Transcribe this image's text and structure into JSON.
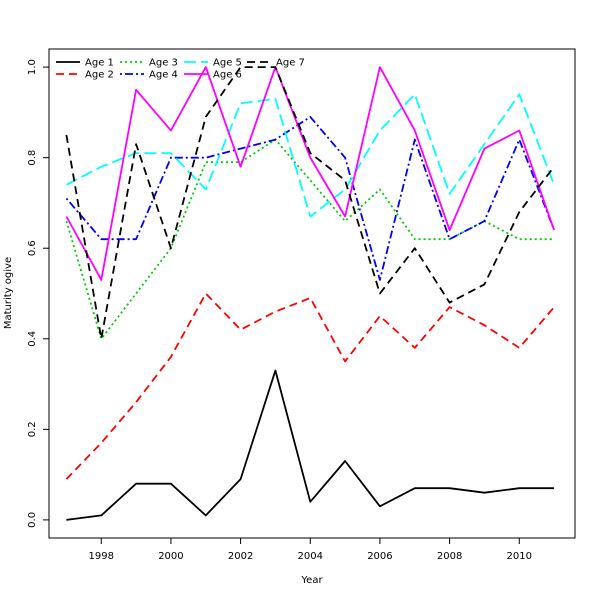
{
  "chart_data": {
    "type": "line",
    "title": "",
    "xlabel": "Year",
    "ylabel": "Maturity ogive",
    "xlim": [
      1996.5,
      2011.6
    ],
    "ylim": [
      -0.04,
      1.04
    ],
    "xticks": [
      1998,
      2000,
      2002,
      2004,
      2006,
      2008,
      2010
    ],
    "yticks": [
      0.0,
      0.2,
      0.4,
      0.6,
      0.8,
      1.0
    ],
    "x": [
      1997,
      1998,
      1999,
      2000,
      2001,
      2002,
      2003,
      2004,
      2005,
      2006,
      2007,
      2008,
      2009,
      2010,
      2011
    ],
    "legend_position": "top-left",
    "grid": false,
    "series": [
      {
        "name": "Age 1",
        "color": "#000000",
        "dash": "solid",
        "values": [
          0.0,
          0.01,
          0.08,
          0.08,
          0.01,
          0.09,
          0.33,
          0.04,
          0.13,
          0.03,
          0.07,
          0.07,
          0.06,
          0.07,
          0.07
        ]
      },
      {
        "name": "Age 2",
        "color": "#ff0000",
        "dash": "dashed",
        "values": [
          0.09,
          0.17,
          0.26,
          0.36,
          0.5,
          0.42,
          0.46,
          0.49,
          0.35,
          0.45,
          0.38,
          0.47,
          0.43,
          0.38,
          0.47
        ]
      },
      {
        "name": "Age 3",
        "color": "#00cd00",
        "dash": "dotted",
        "values": [
          0.66,
          0.4,
          0.5,
          0.6,
          0.79,
          0.79,
          0.84,
          0.75,
          0.66,
          0.73,
          0.62,
          0.62,
          0.66,
          0.62,
          0.62
        ]
      },
      {
        "name": "Age 4",
        "color": "#0000ff",
        "dash": "dotdash",
        "values": [
          0.71,
          0.62,
          0.62,
          0.8,
          0.8,
          0.82,
          0.84,
          0.89,
          0.8,
          0.53,
          0.84,
          0.62,
          0.66,
          0.84,
          0.64
        ]
      },
      {
        "name": "Age 5",
        "color": "#00ffff",
        "dash": "longdash",
        "values": [
          0.74,
          0.78,
          0.81,
          0.81,
          0.73,
          0.92,
          0.93,
          0.67,
          0.73,
          0.86,
          0.94,
          0.72,
          0.83,
          0.94,
          0.74
        ]
      },
      {
        "name": "Age 6",
        "color": "#ff00ff",
        "dash": "solid",
        "values": [
          0.67,
          0.53,
          0.95,
          0.86,
          1.0,
          0.78,
          1.0,
          0.8,
          0.67,
          1.0,
          0.86,
          0.64,
          0.82,
          0.86,
          0.64
        ]
      },
      {
        "name": "Age 7",
        "color": "#000000",
        "dash": "dashed",
        "values": [
          0.85,
          0.4,
          0.83,
          0.6,
          0.89,
          1.0,
          1.0,
          0.81,
          0.75,
          0.5,
          0.6,
          0.48,
          0.52,
          0.68,
          0.78
        ]
      }
    ]
  }
}
